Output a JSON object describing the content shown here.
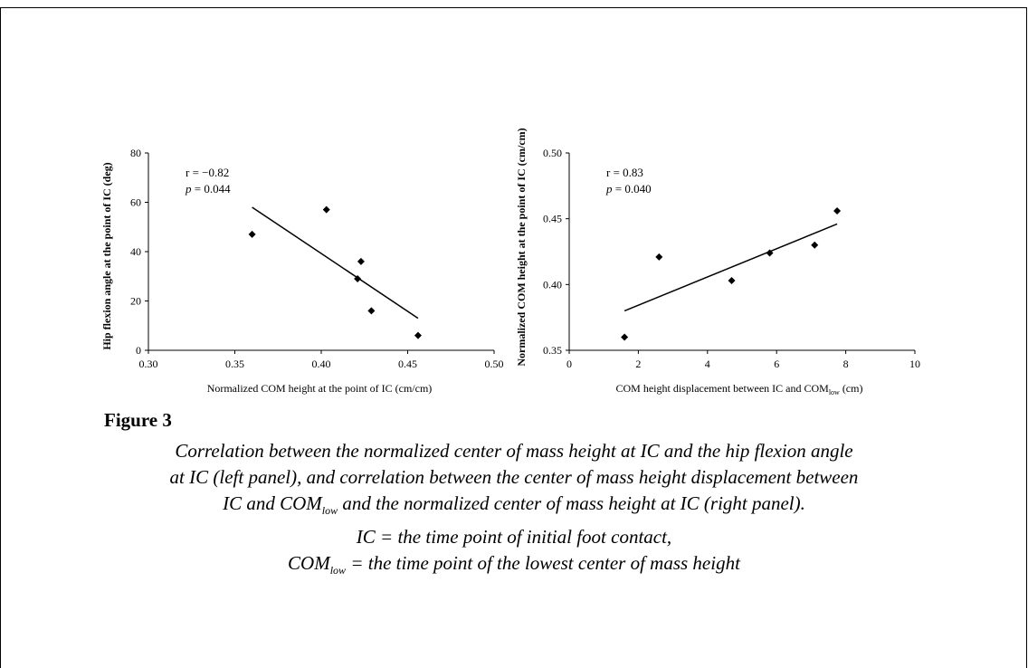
{
  "chart_data": [
    {
      "type": "scatter",
      "xlabel": "Normalized COM height at the point of IC (cm/cm)",
      "ylabel": "Hip flexion angle at the point of IC (deg)",
      "xlim": [
        0.3,
        0.5
      ],
      "ylim": [
        0,
        80
      ],
      "x_ticks": [
        "0.30",
        "0.35",
        "0.40",
        "0.45",
        "0.50"
      ],
      "y_ticks": [
        "0",
        "20",
        "40",
        "60",
        "80"
      ],
      "points": [
        {
          "x": 0.36,
          "y": 47
        },
        {
          "x": 0.403,
          "y": 57
        },
        {
          "x": 0.421,
          "y": 29
        },
        {
          "x": 0.423,
          "y": 36
        },
        {
          "x": 0.429,
          "y": 16
        },
        {
          "x": 0.456,
          "y": 6
        }
      ],
      "trendline": {
        "x": [
          0.36,
          0.456
        ],
        "y": [
          58,
          13
        ]
      },
      "annotation_r": "r = −0.82",
      "annotation_p_label": "p",
      "annotation_p_value": " = 0.044",
      "grid": false
    },
    {
      "type": "scatter",
      "xlabel": "COM height displacement between IC and COM",
      "xlabel_sub": "low",
      "xlabel_unit": " (cm)",
      "ylabel": "Normalized COM height at the point of IC (cm/cm)",
      "xlim": [
        0,
        10
      ],
      "ylim": [
        0.35,
        0.5
      ],
      "x_ticks": [
        "0",
        "2",
        "4",
        "6",
        "8",
        "10"
      ],
      "y_ticks": [
        "0.35",
        "0.40",
        "0.45",
        "0.50"
      ],
      "points": [
        {
          "x": 1.6,
          "y": 0.36
        },
        {
          "x": 2.6,
          "y": 0.421
        },
        {
          "x": 4.7,
          "y": 0.403
        },
        {
          "x": 5.8,
          "y": 0.424
        },
        {
          "x": 7.1,
          "y": 0.43
        },
        {
          "x": 7.75,
          "y": 0.456
        }
      ],
      "trendline": {
        "x": [
          1.6,
          7.75
        ],
        "y": [
          0.38,
          0.446
        ]
      },
      "annotation_r": "r = 0.83",
      "annotation_p_label": "p",
      "annotation_p_value": " = 0.040",
      "grid": false
    }
  ],
  "caption": {
    "title": "Figure 3",
    "line1": "Correlation between the normalized center of mass height at IC and the hip flexion angle",
    "line2": "at IC (left panel), and correlation between the center of mass height displacement between",
    "line3_pre": "IC and COM",
    "line3_sub": "low",
    "line3_post": " and the normalized center of mass height at IC (right panel).",
    "line4": "IC = the time point of initial foot contact,",
    "line5_pre": "COM",
    "line5_sub": "low",
    "line5_post": " = the time point of the lowest center of mass height"
  },
  "colors": {
    "axis": "#000000",
    "marker": "#000000",
    "trendline": "#000000"
  }
}
